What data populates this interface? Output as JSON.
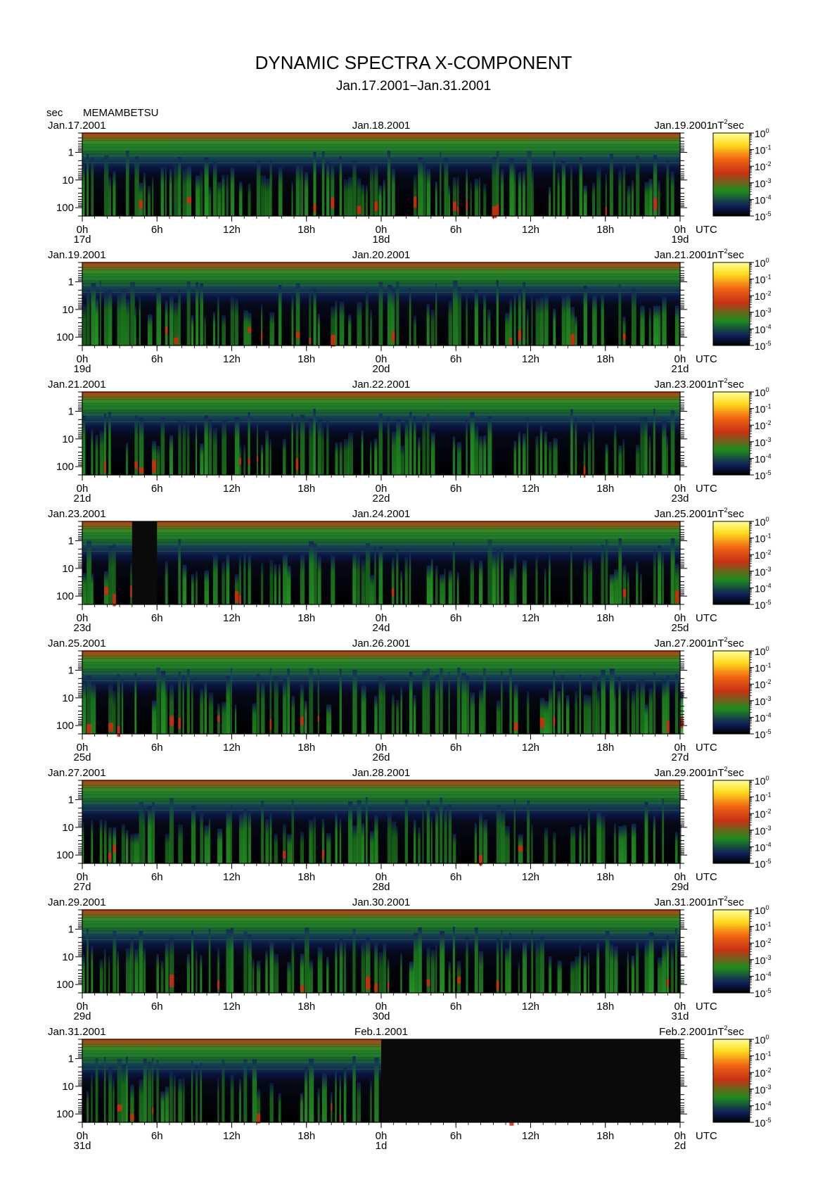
{
  "title": "DYNAMIC SPECTRA X-COMPONENT",
  "subtitle": "Jan.17.2001−Jan.31.2001",
  "y_unit": "sec",
  "station": "MEMAMBETSU",
  "colorbar_unit": "nT",
  "colorbar_unit_sup": "2",
  "colorbar_unit_suffix": "sec",
  "utc_label": "UTC",
  "colors": {
    "background": "#000000",
    "top_band": "#c83214",
    "green": "#1e8c1e",
    "dark_blue": "#101e5a",
    "red": "#e61e0a"
  },
  "chart_data": {
    "type": "heatmap",
    "x_ticks": [
      "0h",
      "6h",
      "12h",
      "18h",
      "0h",
      "6h",
      "12h",
      "18h",
      "0h"
    ],
    "y_tick_labels": [
      "1",
      "10",
      "100"
    ],
    "y_scale": "log",
    "colorbar": {
      "scale": "log",
      "range": [
        1e-05,
        1
      ],
      "tick_base": "10",
      "tick_exponents": [
        "0",
        "-1",
        "-2",
        "-3",
        "-4",
        "-5"
      ],
      "colors": [
        "#000000",
        "#101e5a",
        "#1e8c1e",
        "#c83214",
        "#f06414",
        "#ffdc1e",
        "#ffff96"
      ]
    },
    "panels": [
      {
        "date_left": "Jan.17.2001",
        "date_mid": "Jan.18.2001",
        "date_right": "Jan.19.2001",
        "days": [
          "17d",
          "18d",
          "19d"
        ],
        "no_data": []
      },
      {
        "date_left": "Jan.19.2001",
        "date_mid": "Jan.20.2001",
        "date_right": "Jan.21.2001",
        "days": [
          "19d",
          "20d",
          "21d"
        ],
        "no_data": []
      },
      {
        "date_left": "Jan.21.2001",
        "date_mid": "Jan.22.2001",
        "date_right": "Jan.23.2001",
        "days": [
          "21d",
          "22d",
          "23d"
        ],
        "no_data": []
      },
      {
        "date_left": "Jan.23.2001",
        "date_mid": "Jan.24.2001",
        "date_right": "Jan.25.2001",
        "days": [
          "23d",
          "24d",
          "25d"
        ],
        "no_data": [
          [
            4,
            6
          ]
        ]
      },
      {
        "date_left": "Jan.25.2001",
        "date_mid": "Jan.26.2001",
        "date_right": "Jan.27.2001",
        "days": [
          "25d",
          "26d",
          "27d"
        ],
        "no_data": []
      },
      {
        "date_left": "Jan.27.2001",
        "date_mid": "Jan.28.2001",
        "date_right": "Jan.29.2001",
        "days": [
          "27d",
          "28d",
          "29d"
        ],
        "no_data": []
      },
      {
        "date_left": "Jan.29.2001",
        "date_mid": "Jan.30.2001",
        "date_right": "Jan.31.2001",
        "days": [
          "29d",
          "30d",
          "31d"
        ],
        "no_data": []
      },
      {
        "date_left": "Jan.31.2001",
        "date_mid": "Feb.1.2001",
        "date_right": "Feb.2.2001",
        "days": [
          "31d",
          "1d",
          "2d"
        ],
        "no_data": [
          [
            24,
            48
          ]
        ]
      }
    ]
  }
}
